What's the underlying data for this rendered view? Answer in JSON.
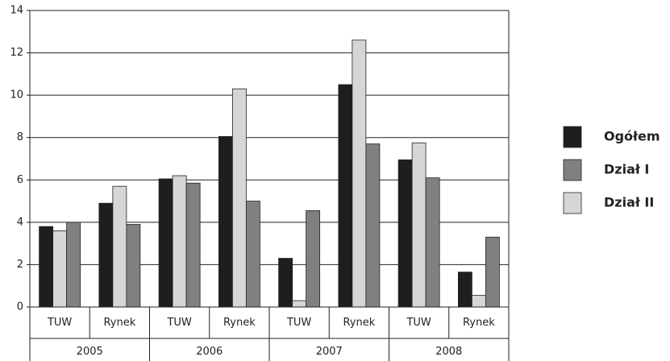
{
  "chart_data": {
    "type": "bar",
    "categories": [
      "TUW",
      "Rynek",
      "TUW",
      "Rynek",
      "TUW",
      "Rynek",
      "TUW",
      "Rynek"
    ],
    "groups": [
      "2005",
      "2006",
      "2007",
      "2008"
    ],
    "series": [
      {
        "name": "Ogółem",
        "color": "#1e1e1e",
        "values": [
          3.8,
          4.9,
          6.05,
          8.05,
          2.3,
          10.5,
          6.95,
          1.65
        ]
      },
      {
        "name": "Dział I",
        "color": "#808080",
        "values": [
          4.0,
          3.9,
          5.85,
          5.0,
          4.55,
          7.7,
          6.1,
          3.3
        ]
      },
      {
        "name": "Dział II",
        "color": "#d6d6d6",
        "values": [
          3.6,
          5.7,
          6.2,
          10.3,
          0.3,
          12.6,
          7.75,
          0.55
        ]
      }
    ],
    "ylim": [
      0,
      14
    ],
    "yticks": [
      0,
      2,
      4,
      6,
      8,
      10,
      12,
      14
    ],
    "grid": true,
    "legend": "right"
  }
}
